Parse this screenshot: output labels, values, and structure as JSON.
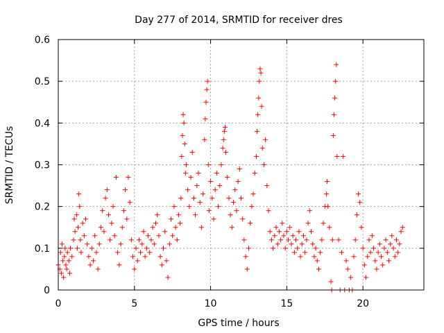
{
  "chart_data": {
    "type": "scatter",
    "title": "Day 277 of 2014, SRMTID for receiver dres",
    "xlabel": "GPS time / hours",
    "ylabel": "SRMTID / TECUs",
    "xlim": [
      0,
      24
    ],
    "ylim": [
      0,
      0.6
    ],
    "xticks": [
      0,
      5,
      10,
      15,
      20
    ],
    "xtick_labels": [
      "0",
      "5",
      "10",
      "15",
      "20"
    ],
    "yticks": [
      0,
      0.1,
      0.2,
      0.3,
      0.4,
      0.5,
      0.6
    ],
    "ytick_labels": [
      "0",
      "0.1",
      "0.2",
      "0.3",
      "0.4",
      "0.5",
      "0.6"
    ],
    "grid": true,
    "marker": "+",
    "color": "#ff0000",
    "series": [
      {
        "name": "SRMTID",
        "points": [
          [
            0.0,
            0.06
          ],
          [
            0.1,
            0.05
          ],
          [
            0.15,
            0.09
          ],
          [
            0.2,
            0.04
          ],
          [
            0.25,
            0.11
          ],
          [
            0.3,
            0.07
          ],
          [
            0.35,
            0.03
          ],
          [
            0.4,
            0.08
          ],
          [
            0.45,
            0.1
          ],
          [
            0.5,
            0.06
          ],
          [
            0.55,
            0.05
          ],
          [
            0.6,
            0.09
          ],
          [
            0.7,
            0.07
          ],
          [
            0.75,
            0.04
          ],
          [
            0.8,
            0.1
          ],
          [
            0.9,
            0.08
          ],
          [
            1.0,
            0.12
          ],
          [
            1.05,
            0.17
          ],
          [
            1.1,
            0.14
          ],
          [
            1.2,
            0.18
          ],
          [
            1.25,
            0.1
          ],
          [
            1.3,
            0.15
          ],
          [
            1.35,
            0.23
          ],
          [
            1.4,
            0.2
          ],
          [
            1.45,
            0.12
          ],
          [
            1.5,
            0.09
          ],
          [
            1.6,
            0.16
          ],
          [
            1.7,
            0.13
          ],
          [
            1.8,
            0.17
          ],
          [
            1.9,
            0.11
          ],
          [
            2.0,
            0.08
          ],
          [
            2.1,
            0.06
          ],
          [
            2.2,
            0.1
          ],
          [
            2.3,
            0.07
          ],
          [
            2.4,
            0.13
          ],
          [
            2.5,
            0.09
          ],
          [
            2.6,
            0.05
          ],
          [
            2.7,
            0.11
          ],
          [
            2.8,
            0.15
          ],
          [
            2.9,
            0.19
          ],
          [
            3.0,
            0.14
          ],
          [
            3.1,
            0.22
          ],
          [
            3.2,
            0.24
          ],
          [
            3.3,
            0.18
          ],
          [
            3.4,
            0.12
          ],
          [
            3.5,
            0.16
          ],
          [
            3.6,
            0.2
          ],
          [
            3.7,
            0.13
          ],
          [
            3.8,
            0.27
          ],
          [
            3.9,
            0.09
          ],
          [
            4.0,
            0.06
          ],
          [
            4.1,
            0.11
          ],
          [
            4.2,
            0.15
          ],
          [
            4.3,
            0.19
          ],
          [
            4.4,
            0.24
          ],
          [
            4.5,
            0.17
          ],
          [
            4.6,
            0.27
          ],
          [
            4.7,
            0.21
          ],
          [
            4.8,
            0.12
          ],
          [
            4.9,
            0.08
          ],
          [
            5.0,
            0.05
          ],
          [
            5.1,
            0.1
          ],
          [
            5.2,
            0.07
          ],
          [
            5.3,
            0.12
          ],
          [
            5.4,
            0.09
          ],
          [
            5.5,
            0.11
          ],
          [
            5.6,
            0.14
          ],
          [
            5.7,
            0.08
          ],
          [
            5.8,
            0.1
          ],
          [
            5.9,
            0.13
          ],
          [
            6.0,
            0.09
          ],
          [
            6.1,
            0.12
          ],
          [
            6.2,
            0.15
          ],
          [
            6.3,
            0.11
          ],
          [
            6.4,
            0.16
          ],
          [
            6.5,
            0.18
          ],
          [
            6.6,
            0.13
          ],
          [
            6.7,
            0.08
          ],
          [
            6.8,
            0.06
          ],
          [
            6.9,
            0.1
          ],
          [
            7.0,
            0.14
          ],
          [
            7.1,
            0.07
          ],
          [
            7.2,
            0.03
          ],
          [
            7.3,
            0.11
          ],
          [
            7.4,
            0.17
          ],
          [
            7.5,
            0.13
          ],
          [
            7.6,
            0.2
          ],
          [
            7.7,
            0.15
          ],
          [
            7.8,
            0.12
          ],
          [
            7.9,
            0.18
          ],
          [
            8.0,
            0.16
          ],
          [
            8.05,
            0.22
          ],
          [
            8.1,
            0.32
          ],
          [
            8.15,
            0.37
          ],
          [
            8.2,
            0.42
          ],
          [
            8.25,
            0.4
          ],
          [
            8.3,
            0.35
          ],
          [
            8.35,
            0.28
          ],
          [
            8.4,
            0.3
          ],
          [
            8.5,
            0.24
          ],
          [
            8.6,
            0.2
          ],
          [
            8.7,
            0.27
          ],
          [
            8.8,
            0.33
          ],
          [
            8.9,
            0.22
          ],
          [
            9.0,
            0.18
          ],
          [
            9.1,
            0.25
          ],
          [
            9.2,
            0.28
          ],
          [
            9.3,
            0.21
          ],
          [
            9.4,
            0.15
          ],
          [
            9.5,
            0.23
          ],
          [
            9.6,
            0.36
          ],
          [
            9.65,
            0.41
          ],
          [
            9.7,
            0.45
          ],
          [
            9.75,
            0.48
          ],
          [
            9.8,
            0.5
          ],
          [
            9.85,
            0.3
          ],
          [
            9.9,
            0.19
          ],
          [
            10.0,
            0.26
          ],
          [
            10.1,
            0.22
          ],
          [
            10.2,
            0.17
          ],
          [
            10.3,
            0.24
          ],
          [
            10.4,
            0.28
          ],
          [
            10.5,
            0.2
          ],
          [
            10.6,
            0.25
          ],
          [
            10.7,
            0.3
          ],
          [
            10.8,
            0.34
          ],
          [
            10.85,
            0.36
          ],
          [
            10.9,
            0.38
          ],
          [
            10.95,
            0.39
          ],
          [
            11.0,
            0.33
          ],
          [
            11.1,
            0.27
          ],
          [
            11.2,
            0.22
          ],
          [
            11.3,
            0.18
          ],
          [
            11.4,
            0.15
          ],
          [
            11.5,
            0.21
          ],
          [
            11.6,
            0.24
          ],
          [
            11.7,
            0.19
          ],
          [
            11.8,
            0.26
          ],
          [
            11.9,
            0.29
          ],
          [
            12.0,
            0.22
          ],
          [
            12.1,
            0.17
          ],
          [
            12.2,
            0.12
          ],
          [
            12.3,
            0.08
          ],
          [
            12.4,
            0.05
          ],
          [
            12.5,
            0.1
          ],
          [
            12.6,
            0.16
          ],
          [
            12.7,
            0.2
          ],
          [
            12.8,
            0.23
          ],
          [
            12.9,
            0.28
          ],
          [
            13.0,
            0.32
          ],
          [
            13.05,
            0.38
          ],
          [
            13.1,
            0.42
          ],
          [
            13.15,
            0.46
          ],
          [
            13.2,
            0.5
          ],
          [
            13.25,
            0.53
          ],
          [
            13.3,
            0.52
          ],
          [
            13.35,
            0.44
          ],
          [
            13.4,
            0.34
          ],
          [
            13.5,
            0.3
          ],
          [
            13.6,
            0.36
          ],
          [
            13.7,
            0.25
          ],
          [
            13.8,
            0.19
          ],
          [
            13.9,
            0.14
          ],
          [
            14.0,
            0.12
          ],
          [
            14.1,
            0.1
          ],
          [
            14.2,
            0.13
          ],
          [
            14.3,
            0.15
          ],
          [
            14.4,
            0.11
          ],
          [
            14.5,
            0.14
          ],
          [
            14.6,
            0.12
          ],
          [
            14.7,
            0.16
          ],
          [
            14.8,
            0.13
          ],
          [
            14.9,
            0.1
          ],
          [
            15.0,
            0.14
          ],
          [
            15.1,
            0.12
          ],
          [
            15.2,
            0.15
          ],
          [
            15.3,
            0.11
          ],
          [
            15.4,
            0.13
          ],
          [
            15.5,
            0.09
          ],
          [
            15.6,
            0.12
          ],
          [
            15.7,
            0.1
          ],
          [
            15.8,
            0.14
          ],
          [
            15.9,
            0.08
          ],
          [
            16.0,
            0.11
          ],
          [
            16.1,
            0.13
          ],
          [
            16.2,
            0.09
          ],
          [
            16.3,
            0.12
          ],
          [
            16.4,
            0.16
          ],
          [
            16.5,
            0.19
          ],
          [
            16.6,
            0.14
          ],
          [
            16.7,
            0.11
          ],
          [
            16.8,
            0.08
          ],
          [
            16.9,
            0.1
          ],
          [
            17.0,
            0.07
          ],
          [
            17.1,
            0.05
          ],
          [
            17.2,
            0.09
          ],
          [
            17.3,
            0.12
          ],
          [
            17.4,
            0.16
          ],
          [
            17.5,
            0.2
          ],
          [
            17.6,
            0.23
          ],
          [
            17.65,
            0.26
          ],
          [
            17.7,
            0.2
          ],
          [
            17.8,
            0.15
          ],
          [
            17.9,
            0.02
          ],
          [
            17.95,
            0.0
          ],
          [
            18.0,
            0.12
          ],
          [
            18.05,
            0.37
          ],
          [
            18.1,
            0.42
          ],
          [
            18.15,
            0.46
          ],
          [
            18.2,
            0.5
          ],
          [
            18.25,
            0.54
          ],
          [
            18.3,
            0.32
          ],
          [
            18.4,
            0.12
          ],
          [
            18.5,
            0.0
          ],
          [
            18.6,
            0.09
          ],
          [
            18.7,
            0.32
          ],
          [
            18.8,
            0.0
          ],
          [
            18.9,
            0.07
          ],
          [
            19.0,
            0.05
          ],
          [
            19.1,
            0.0
          ],
          [
            19.2,
            0.03
          ],
          [
            19.3,
            0.0
          ],
          [
            19.4,
            0.08
          ],
          [
            19.5,
            0.12
          ],
          [
            19.6,
            0.18
          ],
          [
            19.7,
            0.23
          ],
          [
            19.8,
            0.21
          ],
          [
            19.9,
            0.15
          ],
          [
            20.0,
            0.1
          ],
          [
            20.1,
            0.06
          ],
          [
            20.2,
            0.03
          ],
          [
            20.3,
            0.08
          ],
          [
            20.4,
            0.12
          ],
          [
            20.5,
            0.09
          ],
          [
            20.6,
            0.13
          ],
          [
            20.7,
            0.1
          ],
          [
            20.8,
            0.07
          ],
          [
            20.9,
            0.05
          ],
          [
            21.0,
            0.09
          ],
          [
            21.1,
            0.11
          ],
          [
            21.2,
            0.08
          ],
          [
            21.3,
            0.06
          ],
          [
            21.4,
            0.1
          ],
          [
            21.5,
            0.12
          ],
          [
            21.6,
            0.09
          ],
          [
            21.7,
            0.07
          ],
          [
            21.8,
            0.11
          ],
          [
            21.9,
            0.13
          ],
          [
            22.0,
            0.1
          ],
          [
            22.1,
            0.08
          ],
          [
            22.2,
            0.12
          ],
          [
            22.3,
            0.09
          ],
          [
            22.4,
            0.11
          ],
          [
            22.5,
            0.14
          ],
          [
            22.6,
            0.15
          ]
        ]
      }
    ]
  }
}
